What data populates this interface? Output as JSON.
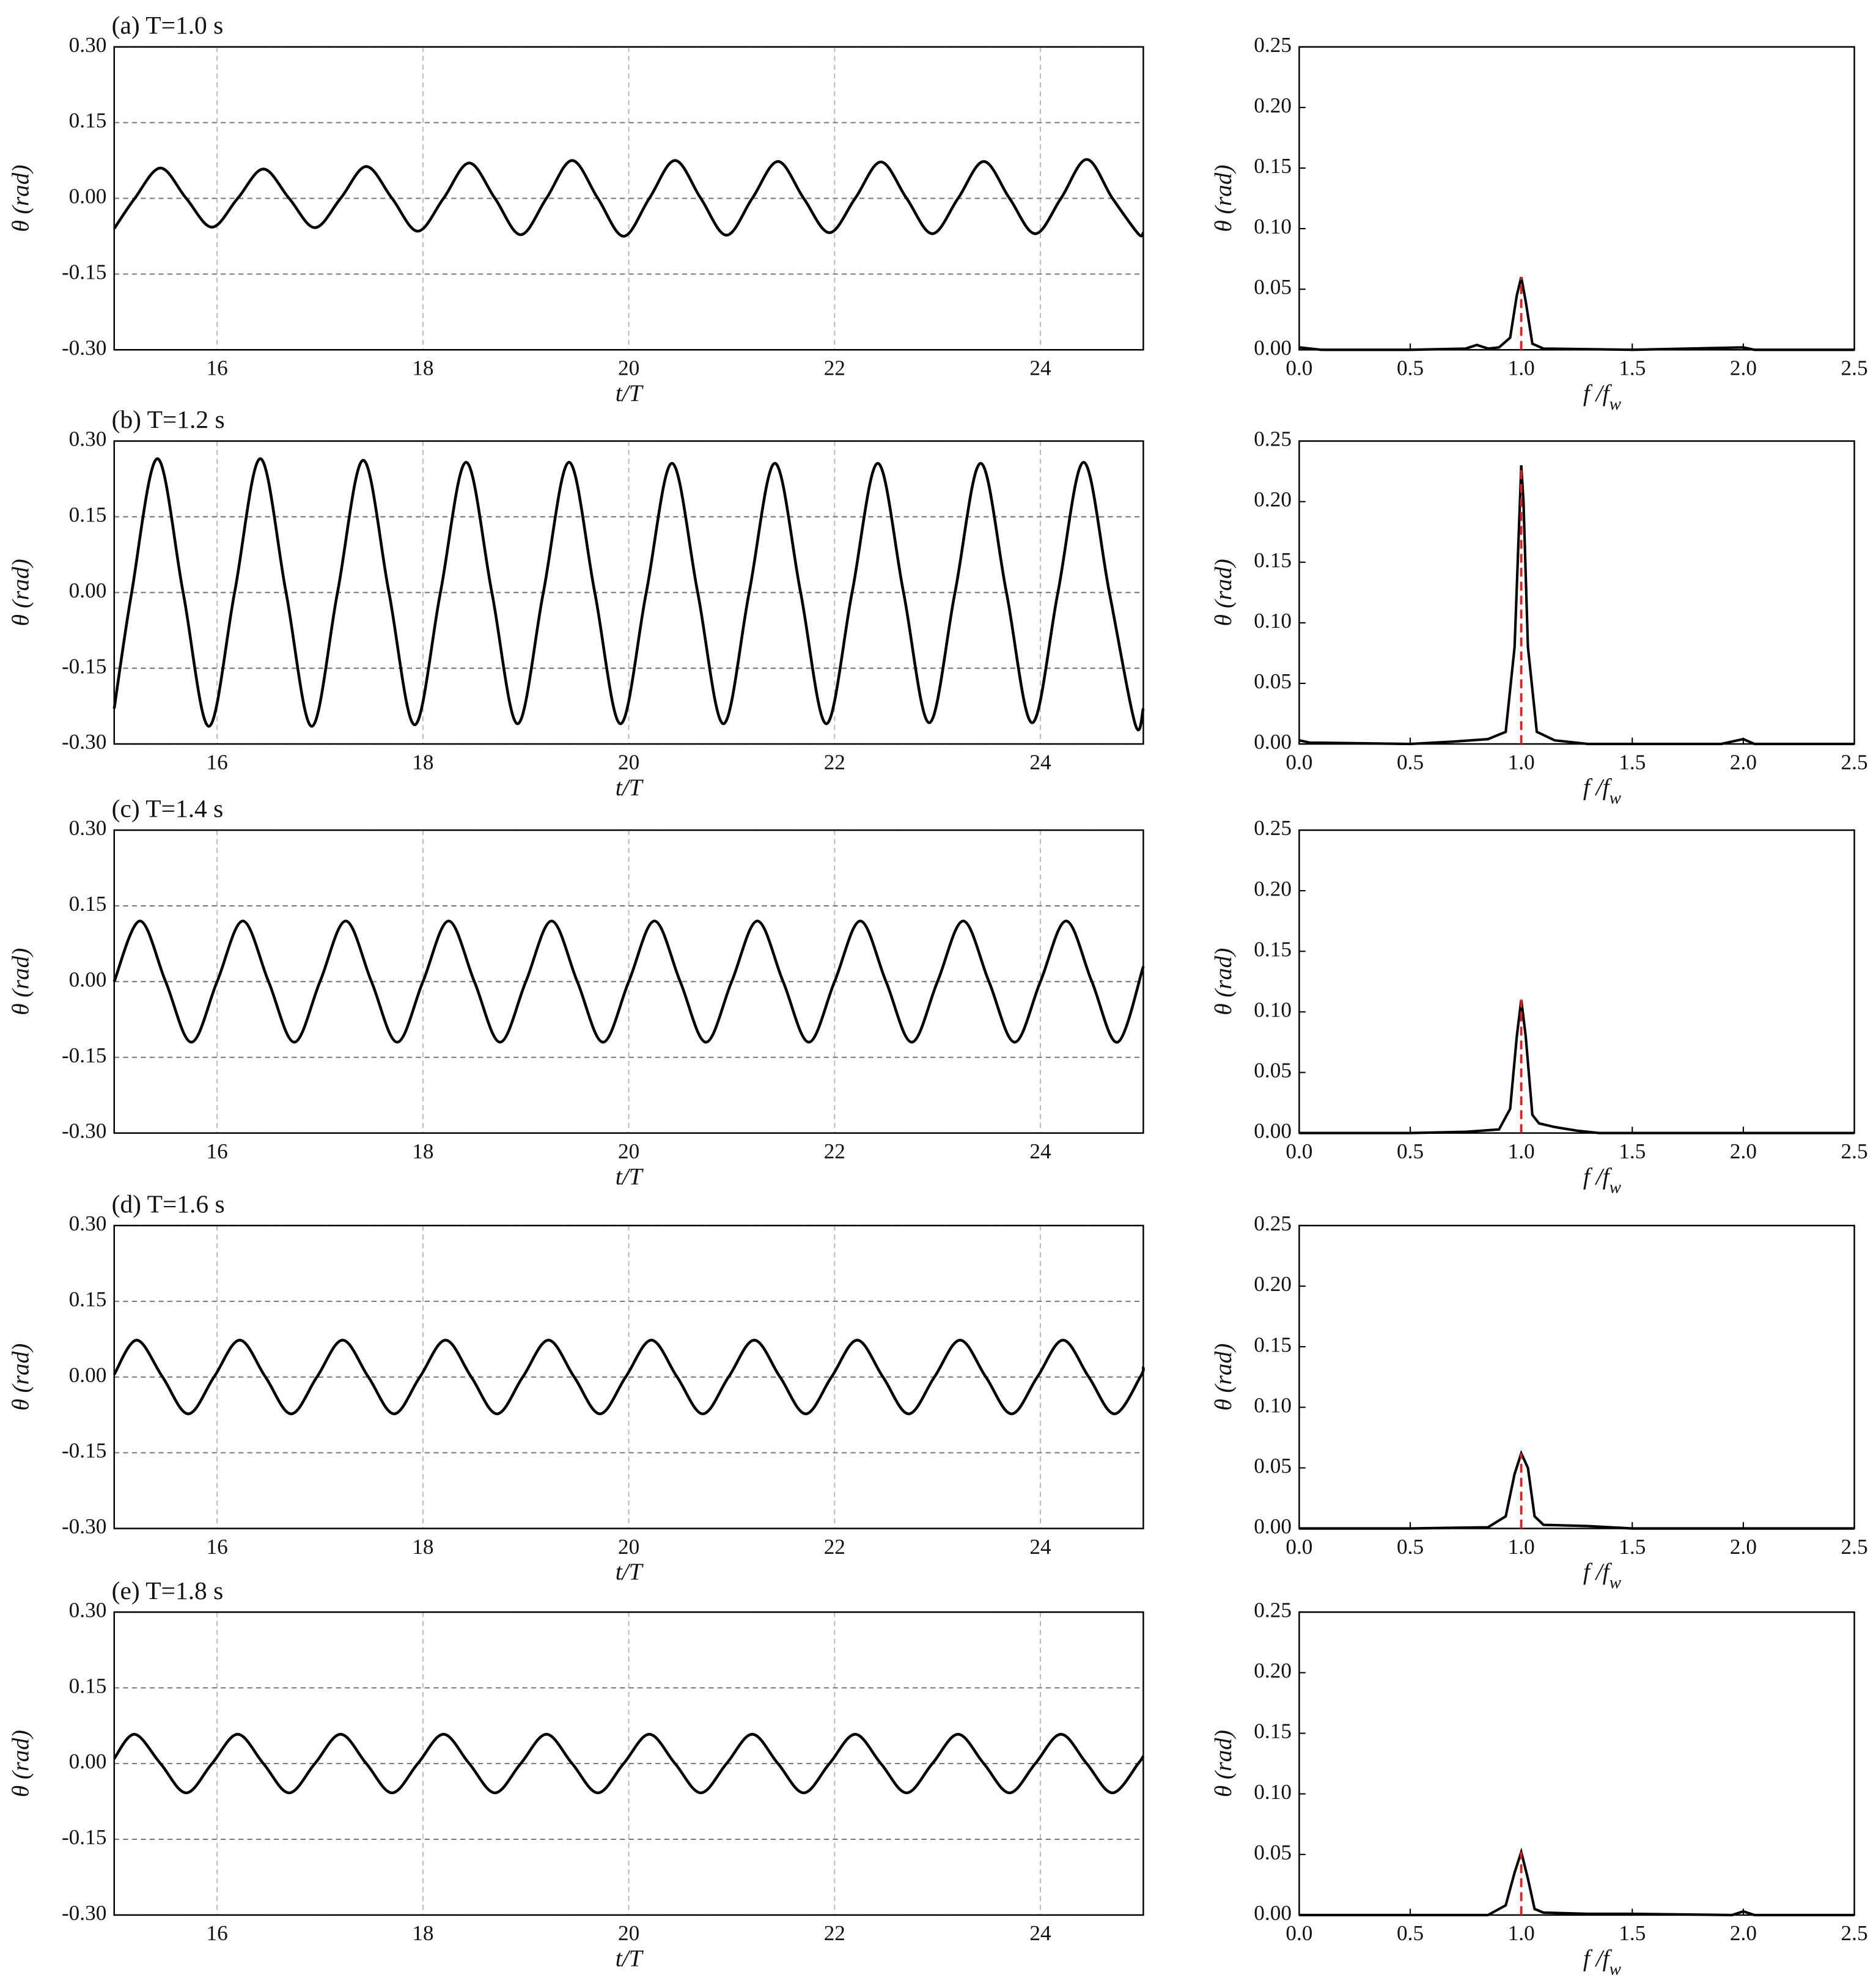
{
  "chart_data": [
    {
      "type": "line",
      "title": "(a) T=1.0 s",
      "ylabel": "θ (rad)",
      "xlabel": "t/T",
      "color": "#000000",
      "grid": true,
      "xlim": [
        15,
        25
      ],
      "xticks": [
        16,
        18,
        20,
        22,
        24
      ],
      "ylim": [
        -0.3,
        0.3
      ],
      "yticks": [
        {
          "value": -0.3,
          "label": "-0.30"
        },
        {
          "value": -0.15,
          "label": "-0.15"
        },
        {
          "value": 0,
          "label": "0.00"
        },
        {
          "value": 0.15,
          "label": "0.15"
        },
        {
          "value": 0.3,
          "label": "0.30"
        }
      ],
      "x": [
        15,
        15.2,
        15.45,
        15.7,
        15.95,
        16.2,
        16.45,
        16.7,
        16.95,
        17.2,
        17.45,
        17.7,
        17.95,
        18.2,
        18.45,
        18.7,
        18.95,
        19.2,
        19.45,
        19.7,
        19.95,
        20.2,
        20.45,
        20.7,
        20.95,
        21.2,
        21.45,
        21.7,
        21.95,
        22.2,
        22.45,
        22.7,
        22.95,
        23.2,
        23.45,
        23.7,
        23.95,
        24.2,
        24.45,
        24.7,
        24.95,
        25
      ],
      "values": [
        -0.06,
        0,
        0.06,
        0,
        -0.057,
        0,
        0.058,
        0,
        -0.058,
        0,
        0.063,
        0,
        -0.065,
        0,
        0.07,
        0,
        -0.072,
        0,
        0.075,
        0,
        -0.075,
        0,
        0.075,
        0,
        -0.073,
        0,
        0.073,
        0,
        -0.068,
        0,
        0.072,
        0,
        -0.07,
        0,
        0.073,
        0,
        -0.07,
        0,
        0.077,
        0,
        -0.07,
        -0.068
      ]
    },
    {
      "type": "spectrum",
      "ylabel": "θ (rad)",
      "xlabel": [
        "f /f",
        "w"
      ],
      "color": "#000000",
      "grid": false,
      "vline": {
        "x": 1,
        "color": "#e0201b"
      },
      "xlim": [
        0,
        2.5
      ],
      "xticks": [
        {
          "value": 0,
          "label": "0.0"
        },
        {
          "value": 0.5,
          "label": "0.5"
        },
        {
          "value": 1,
          "label": "1.0"
        },
        {
          "value": 1.5,
          "label": "1.5"
        },
        {
          "value": 2,
          "label": "2.0"
        },
        {
          "value": 2.5,
          "label": "2.5"
        }
      ],
      "ylim": [
        0,
        0.25
      ],
      "yticks": [
        {
          "value": 0,
          "label": "0.00"
        },
        {
          "value": 0.05,
          "label": "0.05"
        },
        {
          "value": 0.1,
          "label": "0.10"
        },
        {
          "value": 0.15,
          "label": "0.15"
        },
        {
          "value": 0.2,
          "label": "0.20"
        },
        {
          "value": 0.25,
          "label": "0.25"
        }
      ],
      "x": [
        0,
        0.05,
        0.1,
        0.5,
        0.75,
        0.8,
        0.85,
        0.9,
        0.95,
        0.98,
        1.0,
        1.02,
        1.05,
        1.1,
        1.5,
        2.0,
        2.05,
        2.5
      ],
      "values": [
        0.002,
        0.001,
        0,
        0,
        0.001,
        0.004,
        0.001,
        0.002,
        0.01,
        0.045,
        0.06,
        0.04,
        0.005,
        0.001,
        0,
        0.002,
        0,
        0
      ]
    },
    {
      "type": "line",
      "title": "(b) T=1.2 s",
      "ylabel": "θ (rad)",
      "xlabel": "t/T",
      "color": "#000000",
      "grid": true,
      "xlim": [
        15,
        25
      ],
      "xticks": [
        16,
        18,
        20,
        22,
        24
      ],
      "ylim": [
        -0.3,
        0.3
      ],
      "yticks": [
        {
          "value": -0.3,
          "label": "-0.30"
        },
        {
          "value": -0.15,
          "label": "-0.15"
        },
        {
          "value": 0,
          "label": "0.00"
        },
        {
          "value": 0.15,
          "label": "0.15"
        },
        {
          "value": 0.3,
          "label": "0.30"
        }
      ],
      "x": [
        15,
        15.17,
        15.42,
        15.67,
        15.92,
        16.17,
        16.42,
        16.67,
        16.92,
        17.17,
        17.42,
        17.67,
        17.92,
        18.17,
        18.42,
        18.67,
        18.92,
        19.17,
        19.42,
        19.67,
        19.92,
        20.17,
        20.42,
        20.67,
        20.92,
        21.17,
        21.42,
        21.67,
        21.92,
        22.17,
        22.42,
        22.67,
        22.92,
        23.17,
        23.42,
        23.67,
        23.92,
        24.17,
        24.42,
        24.67,
        24.92,
        25
      ],
      "values": [
        -0.23,
        0,
        0.265,
        0,
        -0.265,
        0,
        0.265,
        0,
        -0.265,
        0,
        0.262,
        0,
        -0.262,
        0,
        0.258,
        0,
        -0.26,
        0,
        0.258,
        0,
        -0.26,
        0,
        0.256,
        0,
        -0.26,
        0,
        0.256,
        0,
        -0.26,
        0,
        0.256,
        0,
        -0.258,
        0,
        0.256,
        0,
        -0.258,
        0,
        0.258,
        0,
        -0.26,
        -0.23
      ]
    },
    {
      "type": "spectrum",
      "ylabel": "θ (rad)",
      "xlabel": [
        "f /f",
        "w"
      ],
      "color": "#000000",
      "grid": false,
      "vline": {
        "x": 1,
        "color": "#e0201b"
      },
      "xlim": [
        0,
        2.5
      ],
      "xticks": [
        {
          "value": 0,
          "label": "0.0"
        },
        {
          "value": 0.5,
          "label": "0.5"
        },
        {
          "value": 1,
          "label": "1.0"
        },
        {
          "value": 1.5,
          "label": "1.5"
        },
        {
          "value": 2,
          "label": "2.0"
        },
        {
          "value": 2.5,
          "label": "2.5"
        }
      ],
      "ylim": [
        0,
        0.25
      ],
      "yticks": [
        {
          "value": 0,
          "label": "0.00"
        },
        {
          "value": 0.05,
          "label": "0.05"
        },
        {
          "value": 0.1,
          "label": "0.10"
        },
        {
          "value": 0.15,
          "label": "0.15"
        },
        {
          "value": 0.2,
          "label": "0.20"
        },
        {
          "value": 0.25,
          "label": "0.25"
        }
      ],
      "x": [
        0,
        0.05,
        0.1,
        0.5,
        0.7,
        0.85,
        0.93,
        0.97,
        0.99,
        1.0,
        1.01,
        1.03,
        1.07,
        1.15,
        1.3,
        1.9,
        2.0,
        2.05,
        2.5
      ],
      "values": [
        0.003,
        0.001,
        0.001,
        0,
        0.002,
        0.004,
        0.01,
        0.08,
        0.18,
        0.23,
        0.2,
        0.08,
        0.01,
        0.003,
        0,
        0,
        0.004,
        0,
        0
      ]
    },
    {
      "type": "line",
      "title": "(c) T=1.4 s",
      "ylabel": "θ (rad)",
      "xlabel": "t/T",
      "color": "#000000",
      "grid": true,
      "xlim": [
        15,
        25
      ],
      "xticks": [
        16,
        18,
        20,
        22,
        24
      ],
      "ylim": [
        -0.3,
        0.3
      ],
      "yticks": [
        {
          "value": -0.3,
          "label": "-0.30"
        },
        {
          "value": -0.15,
          "label": "-0.15"
        },
        {
          "value": 0,
          "label": "0.00"
        },
        {
          "value": 0.15,
          "label": "0.15"
        },
        {
          "value": 0.3,
          "label": "0.30"
        }
      ],
      "x": [
        15,
        15.25,
        15.5,
        15.75,
        16,
        16.25,
        16.5,
        16.75,
        17,
        17.25,
        17.5,
        17.75,
        18,
        18.25,
        18.5,
        18.75,
        19,
        19.25,
        19.5,
        19.75,
        20,
        20.25,
        20.5,
        20.75,
        21,
        21.25,
        21.5,
        21.75,
        22,
        22.25,
        22.5,
        22.75,
        23,
        23.25,
        23.5,
        23.75,
        24,
        24.25,
        24.5,
        24.75,
        25
      ],
      "values": [
        0,
        0.12,
        0,
        -0.12,
        0,
        0.12,
        0,
        -0.12,
        0,
        0.12,
        0,
        -0.12,
        0,
        0.12,
        0,
        -0.12,
        0,
        0.12,
        0,
        -0.12,
        0,
        0.12,
        0,
        -0.12,
        0,
        0.12,
        0,
        -0.12,
        0,
        0.12,
        0,
        -0.12,
        0,
        0.12,
        0,
        -0.12,
        0,
        0.12,
        0,
        -0.12,
        0.03
      ]
    },
    {
      "type": "spectrum",
      "ylabel": "θ (rad)",
      "xlabel": [
        "f /f",
        "w"
      ],
      "color": "#000000",
      "grid": false,
      "vline": {
        "x": 1,
        "color": "#e0201b"
      },
      "xlim": [
        0,
        2.5
      ],
      "xticks": [
        {
          "value": 0,
          "label": "0.0"
        },
        {
          "value": 0.5,
          "label": "0.5"
        },
        {
          "value": 1,
          "label": "1.0"
        },
        {
          "value": 1.5,
          "label": "1.5"
        },
        {
          "value": 2,
          "label": "2.0"
        },
        {
          "value": 2.5,
          "label": "2.5"
        }
      ],
      "ylim": [
        0,
        0.25
      ],
      "yticks": [
        {
          "value": 0,
          "label": "0.00"
        },
        {
          "value": 0.05,
          "label": "0.05"
        },
        {
          "value": 0.1,
          "label": "0.10"
        },
        {
          "value": 0.15,
          "label": "0.15"
        },
        {
          "value": 0.2,
          "label": "0.20"
        },
        {
          "value": 0.25,
          "label": "0.25"
        }
      ],
      "x": [
        0,
        0.5,
        0.75,
        0.9,
        0.95,
        0.98,
        1.0,
        1.02,
        1.05,
        1.08,
        1.15,
        1.25,
        1.35,
        2.5
      ],
      "values": [
        0,
        0,
        0.001,
        0.003,
        0.02,
        0.08,
        0.11,
        0.08,
        0.015,
        0.008,
        0.005,
        0.002,
        0,
        0
      ]
    },
    {
      "type": "line",
      "title": "(d) T=1.6 s",
      "ylabel": "θ (rad)",
      "xlabel": "t/T",
      "color": "#000000",
      "grid": true,
      "xlim": [
        15,
        25
      ],
      "xticks": [
        16,
        18,
        20,
        22,
        24
      ],
      "ylim": [
        -0.3,
        0.3
      ],
      "yticks": [
        {
          "value": -0.3,
          "label": "-0.30"
        },
        {
          "value": -0.15,
          "label": "-0.15"
        },
        {
          "value": 0,
          "label": "0.00"
        },
        {
          "value": 0.15,
          "label": "0.15"
        },
        {
          "value": 0.3,
          "label": "0.30"
        }
      ],
      "x": [
        15,
        15.22,
        15.47,
        15.72,
        15.97,
        16.22,
        16.47,
        16.72,
        16.97,
        17.22,
        17.47,
        17.72,
        17.97,
        18.22,
        18.47,
        18.72,
        18.97,
        19.22,
        19.47,
        19.72,
        19.97,
        20.22,
        20.47,
        20.72,
        20.97,
        21.22,
        21.47,
        21.72,
        21.97,
        22.22,
        22.47,
        22.72,
        22.97,
        23.22,
        23.47,
        23.72,
        23.97,
        24.22,
        24.47,
        24.72,
        24.97,
        25
      ],
      "values": [
        0.005,
        0.073,
        0,
        -0.073,
        0,
        0.073,
        0,
        -0.073,
        0,
        0.073,
        0,
        -0.073,
        0,
        0.073,
        0,
        -0.073,
        0,
        0.073,
        0,
        -0.073,
        0,
        0.073,
        0,
        -0.073,
        0,
        0.073,
        0,
        -0.073,
        0,
        0.073,
        0,
        -0.073,
        0,
        0.073,
        0,
        -0.073,
        0,
        0.073,
        0,
        -0.073,
        0,
        0.02
      ]
    },
    {
      "type": "spectrum",
      "ylabel": "θ (rad)",
      "xlabel": [
        "f /f",
        "w"
      ],
      "color": "#000000",
      "grid": false,
      "vline": {
        "x": 1,
        "color": "#e0201b"
      },
      "xlim": [
        0,
        2.5
      ],
      "xticks": [
        {
          "value": 0,
          "label": "0.0"
        },
        {
          "value": 0.5,
          "label": "0.5"
        },
        {
          "value": 1,
          "label": "1.0"
        },
        {
          "value": 1.5,
          "label": "1.5"
        },
        {
          "value": 2,
          "label": "2.0"
        },
        {
          "value": 2.5,
          "label": "2.5"
        }
      ],
      "ylim": [
        0,
        0.25
      ],
      "yticks": [
        {
          "value": 0,
          "label": "0.00"
        },
        {
          "value": 0.05,
          "label": "0.05"
        },
        {
          "value": 0.1,
          "label": "0.10"
        },
        {
          "value": 0.15,
          "label": "0.15"
        },
        {
          "value": 0.2,
          "label": "0.20"
        },
        {
          "value": 0.25,
          "label": "0.25"
        }
      ],
      "x": [
        0,
        0.5,
        0.85,
        0.93,
        0.97,
        1.0,
        1.03,
        1.06,
        1.1,
        1.3,
        1.5,
        2.5
      ],
      "values": [
        0,
        0,
        0.001,
        0.01,
        0.045,
        0.062,
        0.05,
        0.01,
        0.003,
        0.002,
        0,
        0
      ]
    },
    {
      "type": "line",
      "title": "(e) T=1.8 s",
      "ylabel": "θ (rad)",
      "xlabel": "t/T",
      "color": "#000000",
      "grid": true,
      "xlim": [
        15,
        25
      ],
      "xticks": [
        16,
        18,
        20,
        22,
        24
      ],
      "ylim": [
        -0.3,
        0.3
      ],
      "yticks": [
        {
          "value": -0.3,
          "label": "-0.30"
        },
        {
          "value": -0.15,
          "label": "-0.15"
        },
        {
          "value": 0,
          "label": "0.00"
        },
        {
          "value": 0.15,
          "label": "0.15"
        },
        {
          "value": 0.3,
          "label": "0.30"
        }
      ],
      "x": [
        15,
        15.2,
        15.45,
        15.7,
        15.95,
        16.2,
        16.45,
        16.7,
        16.95,
        17.2,
        17.45,
        17.7,
        17.95,
        18.2,
        18.45,
        18.7,
        18.95,
        19.2,
        19.45,
        19.7,
        19.95,
        20.2,
        20.45,
        20.7,
        20.95,
        21.2,
        21.45,
        21.7,
        21.95,
        22.2,
        22.45,
        22.7,
        22.95,
        23.2,
        23.45,
        23.7,
        23.95,
        24.2,
        24.45,
        24.7,
        24.95,
        25
      ],
      "values": [
        0.01,
        0.058,
        0,
        -0.058,
        0,
        0.058,
        0,
        -0.058,
        0,
        0.058,
        0,
        -0.058,
        0,
        0.058,
        0,
        -0.058,
        0,
        0.058,
        0,
        -0.058,
        0,
        0.058,
        0,
        -0.058,
        0,
        0.058,
        0,
        -0.058,
        0,
        0.058,
        0,
        -0.058,
        0,
        0.058,
        0,
        -0.058,
        0,
        0.058,
        0,
        -0.058,
        0,
        0.015
      ]
    },
    {
      "type": "spectrum",
      "ylabel": "θ (rad)",
      "xlabel": [
        "f /f",
        "w"
      ],
      "color": "#000000",
      "grid": false,
      "vline": {
        "x": 1,
        "color": "#e0201b"
      },
      "xlim": [
        0,
        2.5
      ],
      "xticks": [
        {
          "value": 0,
          "label": "0.0"
        },
        {
          "value": 0.5,
          "label": "0.5"
        },
        {
          "value": 1,
          "label": "1.0"
        },
        {
          "value": 1.5,
          "label": "1.5"
        },
        {
          "value": 2,
          "label": "2.0"
        },
        {
          "value": 2.5,
          "label": "2.5"
        }
      ],
      "ylim": [
        0,
        0.25
      ],
      "yticks": [
        {
          "value": 0,
          "label": "0.00"
        },
        {
          "value": 0.05,
          "label": "0.05"
        },
        {
          "value": 0.1,
          "label": "0.10"
        },
        {
          "value": 0.15,
          "label": "0.15"
        },
        {
          "value": 0.2,
          "label": "0.20"
        },
        {
          "value": 0.25,
          "label": "0.25"
        }
      ],
      "x": [
        0,
        0.85,
        0.93,
        0.97,
        1.0,
        1.03,
        1.06,
        1.1,
        1.3,
        1.5,
        1.95,
        2.0,
        2.05,
        2.5
      ],
      "values": [
        0,
        0,
        0.008,
        0.035,
        0.052,
        0.03,
        0.005,
        0.002,
        0.001,
        0.001,
        0,
        0.003,
        0,
        0
      ]
    }
  ]
}
